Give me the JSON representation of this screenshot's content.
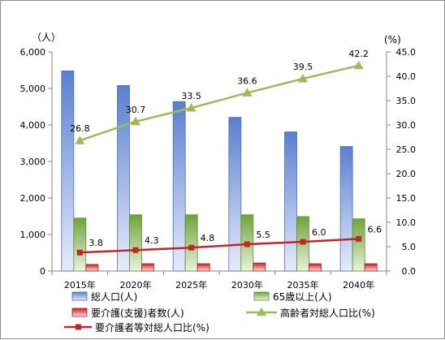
{
  "chart_data": {
    "type": "bar+line",
    "title": "",
    "categories": [
      "2015年",
      "2020年",
      "2025年",
      "2030年",
      "2035年",
      "2040年"
    ],
    "y_left": {
      "unit_label": "（人）",
      "ylim": [
        0,
        6000
      ],
      "ticks": [
        "0",
        "1,000",
        "2,000",
        "3,000",
        "4,000",
        "5,000",
        "6,000"
      ]
    },
    "y_right": {
      "unit_label": "(%)",
      "ylim": [
        0,
        45
      ],
      "ticks": [
        "0.0",
        "5.0",
        "10.0",
        "15.0",
        "20.0",
        "25.0",
        "30.0",
        "35.0",
        "40.0",
        "45.0"
      ]
    },
    "bar_series": [
      {
        "name": "総人口(人)",
        "values": [
          5480,
          5080,
          4640,
          4210,
          3810,
          3410
        ],
        "color": "#7f9fdc"
      },
      {
        "name": "65歳以上(人)",
        "values": [
          1450,
          1540,
          1540,
          1540,
          1490,
          1430
        ],
        "color": "#8fc160"
      },
      {
        "name": "要介護(支援)者数(人)",
        "values": [
          180,
          200,
          200,
          220,
          200,
          200
        ],
        "color": "#e03c3c"
      }
    ],
    "line_series": [
      {
        "name": "高齢者対総人口比(%)",
        "values": [
          26.8,
          30.7,
          33.5,
          36.6,
          39.5,
          42.2
        ],
        "labels": [
          "26.8",
          "30.7",
          "33.5",
          "36.6",
          "39.5",
          "42.2"
        ],
        "color": "#9bbb59",
        "marker": "triangle"
      },
      {
        "name": "要介護者等対総人口比(%)",
        "values": [
          3.8,
          4.3,
          4.8,
          5.5,
          6.0,
          6.6
        ],
        "labels": [
          "3.8",
          "4.3",
          "4.8",
          "5.5",
          "6.0",
          "6.6"
        ],
        "color": "#c0272d",
        "marker": "square"
      }
    ],
    "grid": false,
    "legend_position": "bottom"
  }
}
